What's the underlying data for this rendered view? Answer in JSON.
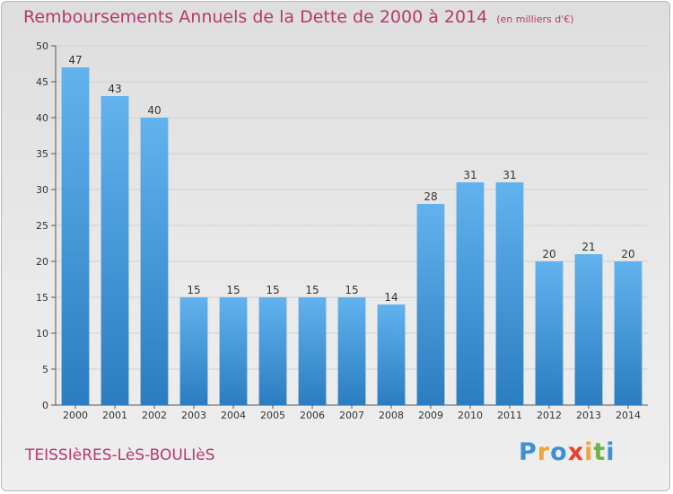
{
  "title": "Remboursements Annuels de la Dette de 2000 à 2014",
  "unit": "(en milliers d'€)",
  "commune": "TEISSIèRES-LèS-BOULIèS",
  "brand": {
    "text": "Proxiti",
    "letters": [
      {
        "char": "P",
        "color": "#3d8fd6"
      },
      {
        "char": "r",
        "color": "#f2a23a"
      },
      {
        "char": "o",
        "color": "#3d8fd6"
      },
      {
        "char": "x",
        "color": "#e8412c"
      },
      {
        "char": "i",
        "color": "#f2a23a"
      },
      {
        "char": "t",
        "color": "#6cb33f"
      },
      {
        "char": "i",
        "color": "#3d8fd6"
      }
    ]
  },
  "colors": {
    "title": "#b5386e",
    "bar_top": "#62b2ee",
    "bar_bottom": "#2a7dc0",
    "grid": "#d0d0d0"
  },
  "chart_data": {
    "type": "bar",
    "categories": [
      "2000",
      "2001",
      "2002",
      "2003",
      "2004",
      "2005",
      "2006",
      "2007",
      "2008",
      "2009",
      "2010",
      "2011",
      "2012",
      "2013",
      "2014"
    ],
    "values": [
      47,
      43,
      40,
      15,
      15,
      15,
      15,
      15,
      14,
      28,
      31,
      31,
      20,
      21,
      20
    ],
    "ylim": [
      0,
      50
    ],
    "yticks": [
      0,
      5,
      10,
      15,
      20,
      25,
      30,
      35,
      40,
      45,
      50
    ],
    "grid": true,
    "data_labels": true
  }
}
